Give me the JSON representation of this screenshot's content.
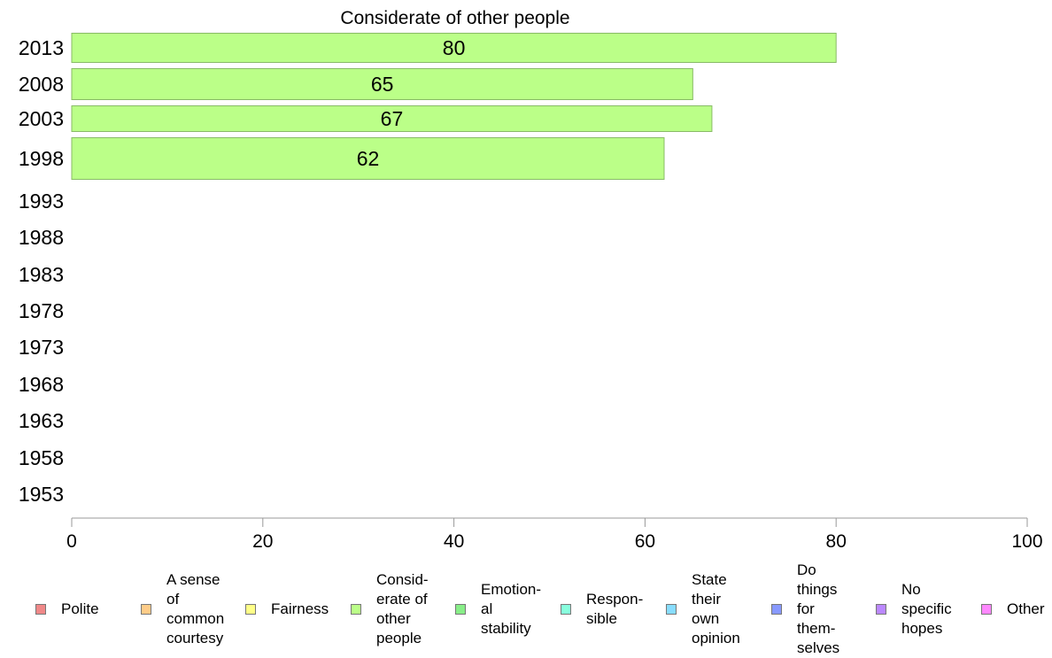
{
  "chart_data": {
    "type": "bar",
    "orientation": "horizontal",
    "title": "Considerate of other people",
    "categories": [
      "2013",
      "2008",
      "2003",
      "1998",
      "1993",
      "1988",
      "1983",
      "1978",
      "1973",
      "1968",
      "1963",
      "1958",
      "1953"
    ],
    "series": [
      {
        "values": [
          80,
          65,
          67,
          62,
          null,
          null,
          null,
          null,
          null,
          null,
          null,
          null,
          null
        ],
        "color": "#bbff88"
      }
    ],
    "data_labels": [
      "80",
      "65",
      "67",
      "62",
      "",
      "",
      "",
      "",
      "",
      "",
      "",
      "",
      ""
    ],
    "xlim": [
      0,
      100
    ],
    "xticks": [
      "0",
      "20",
      "40",
      "60",
      "80",
      "100"
    ],
    "legend_position": "bottom",
    "legend": [
      {
        "label": "Polite",
        "color": "#f08888"
      },
      {
        "label": "A sense\nof\ncommon\ncourtesy",
        "color": "#ffcc88"
      },
      {
        "label": "Fairness",
        "color": "#ffff88"
      },
      {
        "label": "Consid-\nerate of\nother\npeople",
        "color": "#bbff88"
      },
      {
        "label": "Emotion-\nal\nstability",
        "color": "#88ee88"
      },
      {
        "label": "Respon-\nsible",
        "color": "#88ffdd"
      },
      {
        "label": "State\ntheir\nown\nopinion",
        "color": "#88ddff"
      },
      {
        "label": "Do\nthings\nfor\nthem-\nselves",
        "color": "#8899ff"
      },
      {
        "label": "No\nspecific\nhopes",
        "color": "#bb88ff"
      },
      {
        "label": "Other",
        "color": "#ff88ff"
      }
    ]
  }
}
